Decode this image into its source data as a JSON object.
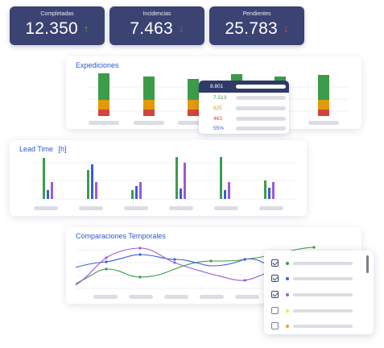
{
  "kpis": [
    {
      "label": "Completadas",
      "value": "12.350",
      "arrow": "↑",
      "color": "#4caf50"
    },
    {
      "label": "Incidencias",
      "value": "7.463",
      "arrow": "↓",
      "color": "#e04848"
    },
    {
      "label": "Pendientes",
      "value": "25.783",
      "arrow": "↓",
      "color": "#e04848"
    }
  ],
  "expediciones": {
    "title": "Expediciones",
    "tooltip": [
      {
        "value": "8.801",
        "color": "#ffffff"
      },
      {
        "value": "7.513",
        "color": "#3d9c4a"
      },
      {
        "value": "825",
        "color": "#e29a0c"
      },
      {
        "value": "463",
        "color": "#d2443c"
      },
      {
        "value": "55%",
        "color": "#3b5bdb"
      }
    ]
  },
  "lead_time": {
    "title": "Lead Time",
    "unit": "[h]"
  },
  "comparaciones": {
    "title": "Comparaciones Temporales",
    "legend": [
      {
        "checked": true,
        "color": "#3d9c4a"
      },
      {
        "checked": true,
        "color": "#3b5bdb"
      },
      {
        "checked": true,
        "color": "#9b5bd4"
      },
      {
        "checked": false,
        "color": "#f2e24a"
      },
      {
        "checked": false,
        "color": "#f0a020"
      }
    ]
  },
  "colors": {
    "green": "#3d9c4a",
    "orange": "#e29a0c",
    "red": "#d2443c",
    "blue": "#3b5bdb",
    "purple": "#9b5bd4",
    "navy": "#3a4372"
  }
}
